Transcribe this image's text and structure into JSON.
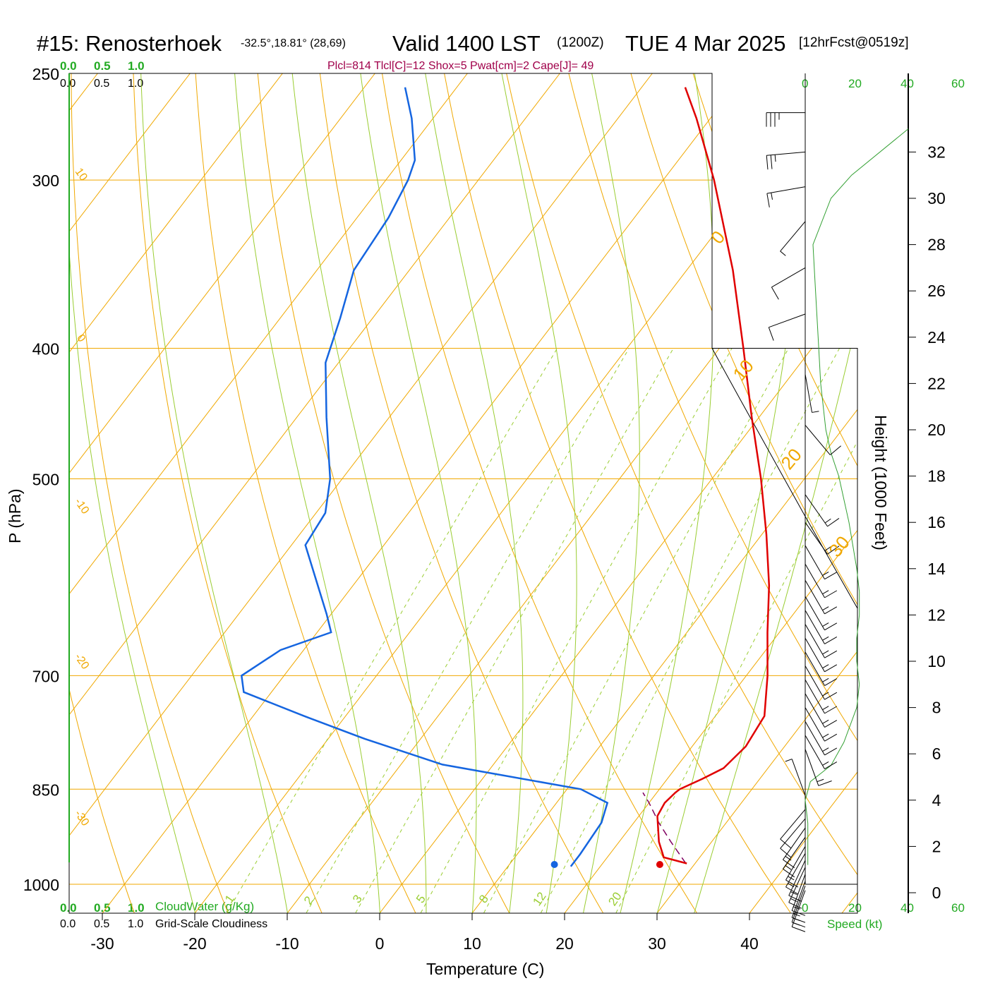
{
  "header": {
    "station": "#15: Renosterhoek",
    "coords": "-32.5°,18.81° (28,69)",
    "valid": "Valid 1400 LST",
    "utc": "(1200Z)",
    "date": "TUE 4 Mar 2025",
    "forecast": "[12hrFcst@0519z]"
  },
  "indices_line": "Plcl=814 Tlcl[C]=12 Shox=5 Pwat[cm]=2 Cape[J]= 49",
  "cloud_scales": {
    "top_green": [
      "0.0",
      "0.5",
      "1.0"
    ],
    "top_black": [
      "0.0",
      "0.5",
      "1.0"
    ],
    "bottom_green": [
      "0.0",
      "0.5",
      "1.0"
    ],
    "bottom_black": [
      "0.0",
      "0.5",
      "1.0"
    ],
    "cloudwater_label": "CloudWater (g/Kg)",
    "cloudiness_label": "Grid-Scale Cloudiness"
  },
  "speed_axis": {
    "ticks": [
      "0",
      "20",
      "40",
      "60"
    ],
    "label": "Speed (kt)"
  },
  "height_axis": {
    "label": "Height (1000 Feet)",
    "ticks": [
      0,
      2,
      4,
      6,
      8,
      10,
      12,
      14,
      16,
      18,
      20,
      22,
      24,
      26,
      28,
      30,
      32
    ]
  },
  "chart_data": {
    "type": "skew-t",
    "xlabel": "Temperature (C)",
    "ylabel": "P (hPa)",
    "x_ticks": [
      -30,
      -20,
      -10,
      0,
      10,
      20,
      30,
      40
    ],
    "y_ticks": [
      250,
      300,
      400,
      500,
      700,
      850,
      1000
    ],
    "pressure_range_hPa": [
      250,
      1000
    ],
    "isotherm_labels": [
      "10",
      "0",
      "-10",
      "-20",
      "-30",
      "0",
      "10",
      "20",
      "30"
    ],
    "mixing_ratio_labels": [
      "1",
      "2",
      "3",
      "5",
      "8",
      "12",
      "20"
    ],
    "surface_temperature_C": 30.3,
    "surface_dewpoint_C": 18.9,
    "temperature_profile": [
      {
        "p": 965,
        "t": 29.1
      },
      {
        "p": 955,
        "t": 26.1
      },
      {
        "p": 930,
        "t": 24.3
      },
      {
        "p": 890,
        "t": 22.0
      },
      {
        "p": 870,
        "t": 21.7
      },
      {
        "p": 855,
        "t": 22.0
      },
      {
        "p": 850,
        "t": 22.2
      },
      {
        "p": 835,
        "t": 23.8
      },
      {
        "p": 820,
        "t": 25.2
      },
      {
        "p": 790,
        "t": 25.8
      },
      {
        "p": 750,
        "t": 25.3
      },
      {
        "p": 700,
        "t": 22.3
      },
      {
        "p": 650,
        "t": 18.7
      },
      {
        "p": 600,
        "t": 15.0
      },
      {
        "p": 550,
        "t": 10.5
      },
      {
        "p": 500,
        "t": 5.3
      },
      {
        "p": 450,
        "t": -0.8
      },
      {
        "p": 400,
        "t": -7.4
      },
      {
        "p": 350,
        "t": -15.0
      },
      {
        "p": 300,
        "t": -24.5
      },
      {
        "p": 270,
        "t": -31.5
      },
      {
        "p": 256,
        "t": -35.3
      }
    ],
    "dewpoint_profile": [
      {
        "p": 970,
        "t": 16.8
      },
      {
        "p": 950,
        "t": 16.8
      },
      {
        "p": 900,
        "t": 16.5
      },
      {
        "p": 870,
        "t": 15.5
      },
      {
        "p": 850,
        "t": 11.5
      },
      {
        "p": 815,
        "t": -5.5
      },
      {
        "p": 780,
        "t": -16.0
      },
      {
        "p": 750,
        "t": -24.5
      },
      {
        "p": 720,
        "t": -33.0
      },
      {
        "p": 700,
        "t": -34.6
      },
      {
        "p": 670,
        "t": -32.5
      },
      {
        "p": 650,
        "t": -28.5
      },
      {
        "p": 630,
        "t": -30.5
      },
      {
        "p": 560,
        "t": -38.5
      },
      {
        "p": 530,
        "t": -39.0
      },
      {
        "p": 500,
        "t": -41.3
      },
      {
        "p": 450,
        "t": -46.8
      },
      {
        "p": 410,
        "t": -51.4
      },
      {
        "p": 380,
        "t": -53.5
      },
      {
        "p": 350,
        "t": -56.0
      },
      {
        "p": 320,
        "t": -56.6
      },
      {
        "p": 300,
        "t": -57.6
      },
      {
        "p": 290,
        "t": -58.5
      },
      {
        "p": 270,
        "t": -62.3
      },
      {
        "p": 256,
        "t": -65.6
      }
    ],
    "parcel_path": [
      {
        "p": 965,
        "t": 29.0
      },
      {
        "p": 930,
        "t": 25.6
      },
      {
        "p": 900,
        "t": 22.7
      },
      {
        "p": 870,
        "t": 20.0
      },
      {
        "p": 855,
        "t": 18.5
      }
    ],
    "wind_speed_profile_kt": [
      {
        "h_kft": 1.2,
        "v": 1
      },
      {
        "h_kft": 2.0,
        "v": 1
      },
      {
        "h_kft": 3.0,
        "v": 1
      },
      {
        "h_kft": 4.0,
        "v": 0
      },
      {
        "h_kft": 4.8,
        "v": 2
      },
      {
        "h_kft": 5.5,
        "v": 10
      },
      {
        "h_kft": 6.5,
        "v": 15
      },
      {
        "h_kft": 8.0,
        "v": 20
      },
      {
        "h_kft": 9.0,
        "v": 21
      },
      {
        "h_kft": 10.0,
        "v": 20
      },
      {
        "h_kft": 11.0,
        "v": 20
      },
      {
        "h_kft": 12.0,
        "v": 21
      },
      {
        "h_kft": 13.0,
        "v": 21
      },
      {
        "h_kft": 14.0,
        "v": 20
      },
      {
        "h_kft": 16.0,
        "v": 17
      },
      {
        "h_kft": 18.0,
        "v": 13
      },
      {
        "h_kft": 19.0,
        "v": 10
      },
      {
        "h_kft": 20.0,
        "v": 8
      },
      {
        "h_kft": 22.0,
        "v": 6
      },
      {
        "h_kft": 24.0,
        "v": 5
      },
      {
        "h_kft": 26.0,
        "v": 4
      },
      {
        "h_kft": 28.0,
        "v": 3
      },
      {
        "h_kft": 30.0,
        "v": 10
      },
      {
        "h_kft": 31.0,
        "v": 18
      },
      {
        "h_kft": 33.0,
        "v": 40
      }
    ],
    "wind_barbs": [
      {
        "h_kft": 0.1,
        "dir": 200,
        "spd": 15
      },
      {
        "h_kft": 0.3,
        "dir": 200,
        "spd": 15
      },
      {
        "h_kft": 0.5,
        "dir": 200,
        "spd": 15
      },
      {
        "h_kft": 0.8,
        "dir": 200,
        "spd": 15
      },
      {
        "h_kft": 1.1,
        "dir": 205,
        "spd": 15
      },
      {
        "h_kft": 1.4,
        "dir": 205,
        "spd": 15
      },
      {
        "h_kft": 1.7,
        "dir": 210,
        "spd": 15
      },
      {
        "h_kft": 2.0,
        "dir": 210,
        "spd": 15
      },
      {
        "h_kft": 2.4,
        "dir": 215,
        "spd": 15
      },
      {
        "h_kft": 2.8,
        "dir": 215,
        "spd": 15
      },
      {
        "h_kft": 3.2,
        "dir": 220,
        "spd": 10
      },
      {
        "h_kft": 3.6,
        "dir": 220,
        "spd": 10
      },
      {
        "h_kft": 4.2,
        "dir": 340,
        "spd": 5
      },
      {
        "h_kft": 6.2,
        "dir": 160,
        "spd": 15
      },
      {
        "h_kft": 6.8,
        "dir": 150,
        "spd": 15
      },
      {
        "h_kft": 7.4,
        "dir": 150,
        "spd": 15
      },
      {
        "h_kft": 8.0,
        "dir": 150,
        "spd": 15
      },
      {
        "h_kft": 8.6,
        "dir": 150,
        "spd": 15
      },
      {
        "h_kft": 9.2,
        "dir": 150,
        "spd": 15
      },
      {
        "h_kft": 9.8,
        "dir": 150,
        "spd": 15
      },
      {
        "h_kft": 10.4,
        "dir": 150,
        "spd": 15
      },
      {
        "h_kft": 11.0,
        "dir": 150,
        "spd": 15
      },
      {
        "h_kft": 11.6,
        "dir": 150,
        "spd": 15
      },
      {
        "h_kft": 12.2,
        "dir": 150,
        "spd": 15
      },
      {
        "h_kft": 12.8,
        "dir": 150,
        "spd": 15
      },
      {
        "h_kft": 13.5,
        "dir": 150,
        "spd": 15
      },
      {
        "h_kft": 14.2,
        "dir": 150,
        "spd": 15
      },
      {
        "h_kft": 15.0,
        "dir": 150,
        "spd": 15
      },
      {
        "h_kft": 16.0,
        "dir": 145,
        "spd": 15
      },
      {
        "h_kft": 17.2,
        "dir": 145,
        "spd": 15
      },
      {
        "h_kft": 20.2,
        "dir": 140,
        "spd": 10
      },
      {
        "h_kft": 22.4,
        "dir": 170,
        "spd": 5
      },
      {
        "h_kft": 25.0,
        "dir": 250,
        "spd": 10
      },
      {
        "h_kft": 27.0,
        "dir": 240,
        "spd": 10
      },
      {
        "h_kft": 29.0,
        "dir": 220,
        "spd": 5
      },
      {
        "h_kft": 30.5,
        "dir": 260,
        "spd": 15
      },
      {
        "h_kft": 32.0,
        "dir": 265,
        "spd": 25
      },
      {
        "h_kft": 33.7,
        "dir": 270,
        "spd": 35
      }
    ]
  },
  "colors": {
    "temperature": "#e00000",
    "dewpoint": "#1565e0",
    "isotherm": "#f0a800",
    "dry_adiabat": "#f0a800",
    "moist_adiabat": "#9acd32",
    "mixing_ratio": "#9acd32",
    "cloud_axis": "#22aa22",
    "wind_speed": "#33a033",
    "parcel": "#800060"
  }
}
